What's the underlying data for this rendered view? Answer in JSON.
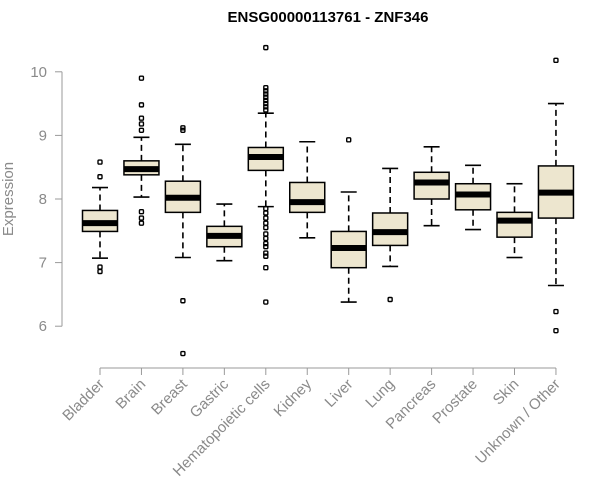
{
  "chart_data": {
    "type": "box",
    "title": "ENSG00000113761 - ZNF346",
    "xlabel": "",
    "ylabel": "Expression",
    "ylim": [
      5.5,
      10.5
    ],
    "yticks": [
      6,
      7,
      8,
      9,
      10
    ],
    "box_color": "#ede6cf",
    "categories": [
      "Bladder",
      "Brain",
      "Breast",
      "Gastric",
      "Hematopoietic cells",
      "Kidney",
      "Liver",
      "Lung",
      "Pancreas",
      "Prostate",
      "Skin",
      "Unknown / Other"
    ],
    "boxes": [
      {
        "name": "Bladder",
        "whisker_low": 7.07,
        "q1": 7.49,
        "median": 7.62,
        "q3": 7.82,
        "whisker_high": 8.18,
        "outliers": [
          6.86,
          6.93,
          8.35,
          8.58
        ]
      },
      {
        "name": "Brain",
        "whisker_low": 8.03,
        "q1": 8.38,
        "median": 8.47,
        "q3": 8.6,
        "whisker_high": 8.97,
        "outliers": [
          7.62,
          7.7,
          7.8,
          9.08,
          9.18,
          9.27,
          9.48,
          9.9
        ]
      },
      {
        "name": "Breast",
        "whisker_low": 7.08,
        "q1": 7.79,
        "median": 8.02,
        "q3": 8.28,
        "whisker_high": 8.86,
        "outliers": [
          5.57,
          6.4,
          9.08,
          9.12
        ]
      },
      {
        "name": "Gastric",
        "whisker_low": 7.03,
        "q1": 7.25,
        "median": 7.42,
        "q3": 7.57,
        "whisker_high": 7.92,
        "outliers": []
      },
      {
        "name": "Hematopoietic cells",
        "whisker_low": 7.88,
        "q1": 8.45,
        "median": 8.66,
        "q3": 8.81,
        "whisker_high": 9.35,
        "outliers": [
          6.38,
          6.92,
          7.1,
          7.15,
          7.25,
          7.3,
          7.38,
          7.45,
          7.55,
          7.62,
          7.7,
          7.78,
          7.85,
          9.4,
          9.45,
          9.5,
          9.55,
          9.6,
          9.65,
          9.7,
          9.75,
          10.38
        ]
      },
      {
        "name": "Kidney",
        "whisker_low": 7.39,
        "q1": 7.79,
        "median": 7.95,
        "q3": 8.26,
        "whisker_high": 8.9,
        "outliers": []
      },
      {
        "name": "Liver",
        "whisker_low": 6.38,
        "q1": 6.92,
        "median": 7.23,
        "q3": 7.49,
        "whisker_high": 8.11,
        "outliers": [
          8.93
        ]
      },
      {
        "name": "Lung",
        "whisker_low": 6.94,
        "q1": 7.27,
        "median": 7.48,
        "q3": 7.78,
        "whisker_high": 8.48,
        "outliers": [
          6.42
        ]
      },
      {
        "name": "Pancreas",
        "whisker_low": 7.58,
        "q1": 8.0,
        "median": 8.26,
        "q3": 8.42,
        "whisker_high": 8.82,
        "outliers": []
      },
      {
        "name": "Prostate",
        "whisker_low": 7.52,
        "q1": 7.83,
        "median": 8.07,
        "q3": 8.24,
        "whisker_high": 8.53,
        "outliers": []
      },
      {
        "name": "Skin",
        "whisker_low": 7.08,
        "q1": 7.4,
        "median": 7.66,
        "q3": 7.79,
        "whisker_high": 8.24,
        "outliers": []
      },
      {
        "name": "Unknown / Other",
        "whisker_low": 6.64,
        "q1": 7.7,
        "median": 8.1,
        "q3": 8.52,
        "whisker_high": 9.5,
        "outliers": [
          5.93,
          6.23,
          10.18
        ]
      }
    ]
  }
}
